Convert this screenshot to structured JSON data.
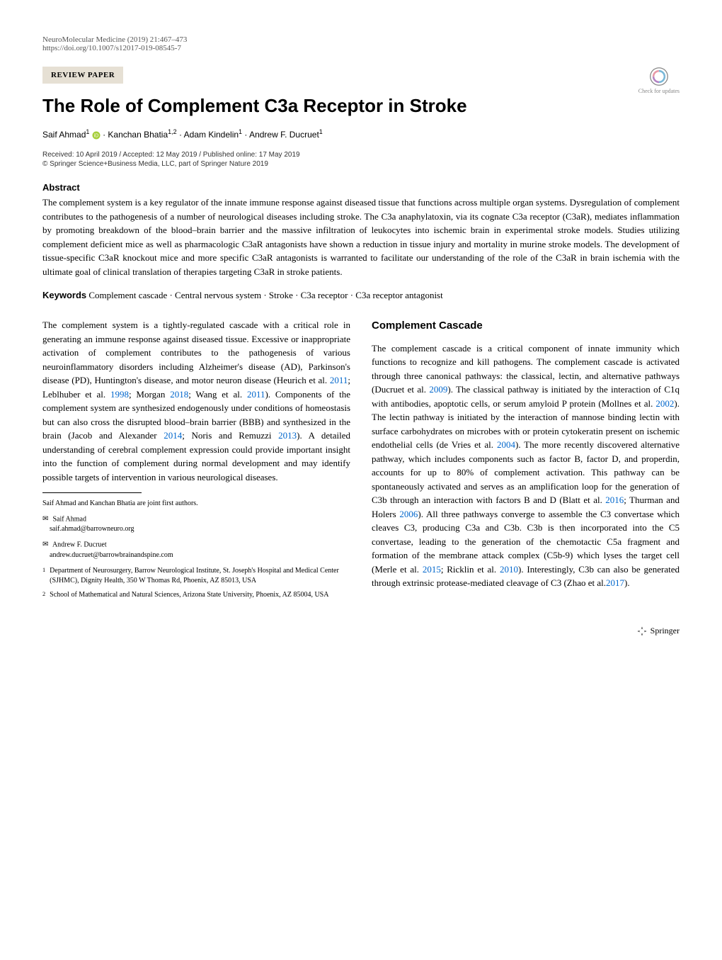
{
  "header": {
    "journal_citation": "NeuroMolecular Medicine (2019) 21:467–473",
    "doi": "https://doi.org/10.1007/s12017-019-08545-7",
    "paper_type": "REVIEW PAPER",
    "check_updates_label": "Check for updates"
  },
  "title": "The Role of Complement C3a Receptor in Stroke",
  "authors_html": "Saif Ahmad<sup>1</sup> <span class=\"orcid-icon\"><svg viewBox=\"0 0 24 24\"><circle cx=\"12\" cy=\"12\" r=\"11\" fill=\"#a6ce39\"/><text x=\"12\" y=\"17\" font-size=\"14\" text-anchor=\"middle\" fill=\"#fff\" font-family=\"Arial\">iD</text></svg></span> · Kanchan Bhatia<sup>1,2</sup> · Adam Kindelin<sup>1</sup> · Andrew F. Ducruet<sup>1</sup>",
  "dates": "Received: 10 April 2019 / Accepted: 12 May 2019 / Published online: 17 May 2019",
  "copyright": "© Springer Science+Business Media, LLC, part of Springer Nature 2019",
  "abstract": {
    "heading": "Abstract",
    "text": "The complement system is a key regulator of the innate immune response against diseased tissue that functions across multiple organ systems. Dysregulation of complement contributes to the pathogenesis of a number of neurological diseases including stroke. The C3a anaphylatoxin, via its cognate C3a receptor (C3aR), mediates inflammation by promoting breakdown of the blood–brain barrier and the massive infiltration of leukocytes into ischemic brain in experimental stroke models. Studies utilizing complement deficient mice as well as pharmacologic C3aR antagonists have shown a reduction in tissue injury and mortality in murine stroke models. The development of tissue-specific C3aR knockout mice and more specific C3aR antagonists is warranted to facilitate our understanding of the role of the C3aR in brain ischemia with the ultimate goal of clinical translation of therapies targeting C3aR in stroke patients."
  },
  "keywords": {
    "label": "Keywords",
    "text": "Complement cascade · Central nervous system · Stroke · C3a receptor · C3a receptor antagonist"
  },
  "left_column": {
    "intro_part1": "The complement system is a tightly-regulated cascade with a critical role in generating an immune response against diseased tissue. Excessive or inappropriate activation of complement contributes to the pathogenesis of various neuroinflammatory disorders including Alzheimer's disease (AD), Parkinson's disease (PD), Huntington's disease, and motor neuron disease (Heurich et al. ",
    "cite1": "2011",
    "intro_part2": "; Leblhuber et al. ",
    "cite2": "1998",
    "intro_part3": "; Morgan ",
    "cite3": "2018",
    "intro_part4": "; Wang et al. ",
    "cite4": "2011",
    "intro_part5": "). Components of the complement system are synthesized endogenously under conditions of homeostasis but can also cross the disrupted blood–brain barrier (BBB) and synthesized in the brain (Jacob and Alexander ",
    "cite5": "2014",
    "intro_part6": "; Noris and Remuzzi ",
    "cite6": "2013",
    "intro_part7": "). A detailed understanding of cerebral complement expression could provide important insight into the function of complement during normal development and may identify possible targets of intervention in various neurological diseases."
  },
  "footnotes": {
    "joint_authors": "Saif Ahmad and Kanchan Bhatia are joint first authors.",
    "corr1_name": "Saif Ahmad",
    "corr1_email": "saif.ahmad@barrowneuro.org",
    "corr2_name": "Andrew F. Ducruet",
    "corr2_email": "andrew.ducruet@barrowbrainandspine.com",
    "affil1_num": "1",
    "affil1": "Department of Neurosurgery, Barrow Neurological Institute, St. Joseph's Hospital and Medical Center (SJHMC), Dignity Health, 350 W Thomas Rd, Phoenix, AZ 85013, USA",
    "affil2_num": "2",
    "affil2": "School of Mathematical and Natural Sciences, Arizona State University, Phoenix, AZ 85004, USA"
  },
  "right_column": {
    "heading": "Complement Cascade",
    "p1": "The complement cascade is a critical component of innate immunity which functions to recognize and kill pathogens. The complement cascade is activated through three canonical pathways: the classical, lectin, and alternative pathways (Ducruet et al. ",
    "c1": "2009",
    "p2": "). The classical pathway is initiated by the interaction of C1q with antibodies, apoptotic cells, or serum amyloid P protein (Mollnes et al. ",
    "c2": "2002",
    "p3": "). The lectin pathway is initiated by the interaction of mannose binding lectin with surface carbohydrates on microbes with or protein cytokeratin present on ischemic endothelial cells (de Vries et al. ",
    "c3": "2004",
    "p4": "). The more recently discovered alternative pathway, which includes components such as factor B, factor D, and properdin, accounts for up to 80% of complement activation. This pathway can be spontaneously activated and serves as an amplification loop for the generation of C3b through an interaction with factors B and D (Blatt et al. ",
    "c4": "2016",
    "p5": "; Thurman and Holers ",
    "c5": "2006",
    "p6": "). All three pathways converge to assemble the C3 convertase which cleaves C3, producing C3a and C3b. C3b is then incorporated into the C5 convertase, leading to the generation of the chemotactic C5a fragment and formation of the membrane attack complex (C5b-9) which lyses the target cell (Merle et al. ",
    "c6": "2015",
    "p7": "; Ricklin et al. ",
    "c7": "2010",
    "p8": "). Interestingly, C3b can also be generated through extrinsic protease-mediated cleavage of C3 (Zhao et al.",
    "c8": "2017",
    "p9": ")."
  },
  "footer": {
    "publisher": "Springer"
  },
  "colors": {
    "paper_type_bg": "#e6e0d4",
    "citation_link": "#0066cc",
    "orcid": "#a6ce39"
  }
}
